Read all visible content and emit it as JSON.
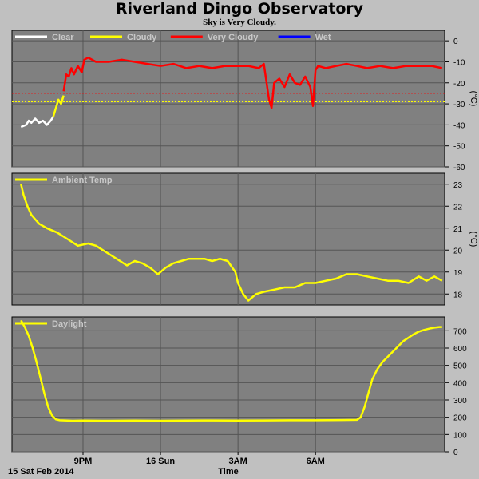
{
  "title": "Riverland Dingo Observatory",
  "subtitle": "Sky is Very Cloudy.",
  "date_label": "15 Sat Feb 2014",
  "xlabel": "Time",
  "x_ticks": [
    "9PM",
    "16 Sun",
    "3AM",
    "6AM"
  ],
  "colors": {
    "background": "#c0c0c0",
    "plot": "#808080",
    "grid": "#555555",
    "clear": "#ffffff",
    "cloudy": "#ffff00",
    "very_cloudy": "#ff0000",
    "wet": "#0000ff"
  },
  "chart_data": [
    {
      "type": "line",
      "name": "sky",
      "ylabel": "(°C)",
      "ylim": [
        -60,
        5
      ],
      "yticks": [
        0,
        -10,
        -20,
        -30,
        -40,
        -50,
        -60
      ],
      "thresholds": [
        {
          "value": -25,
          "color": "#ff0000"
        },
        {
          "value": -29,
          "color": "#ffff00"
        }
      ],
      "legend": [
        {
          "label": "Clear",
          "color": "#ffffff"
        },
        {
          "label": "Cloudy",
          "color": "#ffff00"
        },
        {
          "label": "Very Cloudy",
          "color": "#ff0000"
        },
        {
          "label": "Wet",
          "color": "#0000ff"
        }
      ],
      "series": [
        {
          "name": "Clear",
          "color": "#ffffff",
          "x": [
            18.6,
            18.8,
            18.9,
            19.0,
            19.15,
            19.3,
            19.45,
            19.6,
            19.75,
            19.85
          ],
          "y": [
            -41,
            -40,
            -38,
            -39,
            -37,
            -39,
            -38,
            -40,
            -38,
            -36
          ]
        },
        {
          "name": "Cloudy",
          "color": "#ffff00",
          "x": [
            19.85,
            19.95,
            20.05,
            20.15,
            20.25
          ],
          "y": [
            -36,
            -32,
            -28,
            -30,
            -26
          ]
        },
        {
          "name": "Very Cloudy",
          "color": "#ff0000",
          "x": [
            20.25,
            20.35,
            20.45,
            20.55,
            20.65,
            20.8,
            20.95,
            21.05,
            21.2,
            21.5,
            22.0,
            22.5,
            23.0,
            23.5,
            24.0,
            24.5,
            25.0,
            25.5,
            26.0,
            26.5,
            27.0,
            27.4,
            27.8,
            28.0,
            28.2,
            28.3,
            28.4,
            28.6,
            28.8,
            29.0,
            29.2,
            29.4,
            29.6,
            29.8,
            29.9,
            30.0,
            30.1,
            30.4,
            30.8,
            31.2,
            31.6,
            32.0,
            32.5,
            33.0,
            33.5,
            34.0,
            34.5,
            34.9
          ],
          "y": [
            -24,
            -16,
            -17,
            -13,
            -16,
            -12,
            -15,
            -9,
            -8,
            -10,
            -10,
            -9,
            -10,
            -11,
            -12,
            -11,
            -13,
            -12,
            -13,
            -12,
            -12,
            -12,
            -13,
            -11,
            -28,
            -32,
            -20,
            -18,
            -22,
            -16,
            -20,
            -21,
            -17,
            -22,
            -31,
            -14,
            -12,
            -13,
            -12,
            -11,
            -12,
            -13,
            -12,
            -13,
            -12,
            -12,
            -12,
            -13
          ]
        }
      ]
    },
    {
      "type": "line",
      "name": "ambient",
      "ylabel": "(°C)",
      "ylim": [
        17.5,
        23.5
      ],
      "yticks": [
        23,
        22,
        21,
        20,
        19,
        18
      ],
      "legend": [
        {
          "label": "Ambient Temp",
          "color": "#ffff00"
        }
      ],
      "series": [
        {
          "name": "Ambient Temp",
          "color": "#ffff00",
          "x": [
            18.6,
            18.7,
            18.85,
            19.0,
            19.3,
            19.6,
            20.0,
            20.4,
            20.8,
            21.2,
            21.5,
            21.9,
            22.3,
            22.7,
            23.0,
            23.3,
            23.6,
            23.9,
            24.2,
            24.5,
            24.8,
            25.1,
            25.4,
            25.7,
            26.0,
            26.3,
            26.6,
            26.9,
            27.0,
            27.2,
            27.4,
            27.7,
            28.0,
            28.4,
            28.8,
            29.2,
            29.6,
            30.0,
            30.4,
            30.8,
            31.2,
            31.6,
            32.0,
            32.4,
            32.8,
            33.2,
            33.6,
            34.0,
            34.3,
            34.6,
            34.9
          ],
          "y": [
            23.0,
            22.5,
            22.0,
            21.6,
            21.2,
            21.0,
            20.8,
            20.5,
            20.2,
            20.3,
            20.2,
            19.9,
            19.6,
            19.3,
            19.5,
            19.4,
            19.2,
            18.9,
            19.2,
            19.4,
            19.5,
            19.6,
            19.6,
            19.6,
            19.5,
            19.6,
            19.5,
            19.0,
            18.5,
            18.0,
            17.7,
            18.0,
            18.1,
            18.2,
            18.3,
            18.3,
            18.5,
            18.5,
            18.6,
            18.7,
            18.9,
            18.9,
            18.8,
            18.7,
            18.6,
            18.6,
            18.5,
            18.8,
            18.6,
            18.8,
            18.6
          ]
        }
      ]
    },
    {
      "type": "line",
      "name": "daylight",
      "ylabel": "",
      "ylim": [
        0,
        780
      ],
      "yticks": [
        700,
        600,
        500,
        400,
        300,
        200,
        100,
        0
      ],
      "legend": [
        {
          "label": "Daylight",
          "color": "#ffff00"
        }
      ],
      "series": [
        {
          "name": "Daylight",
          "color": "#ffff00",
          "x": [
            18.6,
            18.75,
            18.9,
            19.05,
            19.2,
            19.35,
            19.5,
            19.65,
            19.8,
            19.95,
            20.1,
            20.3,
            20.6,
            21.0,
            22.0,
            23.0,
            24.0,
            25.0,
            26.0,
            27.0,
            28.0,
            29.0,
            30.0,
            31.0,
            31.6,
            31.75,
            31.9,
            32.05,
            32.2,
            32.4,
            32.6,
            32.8,
            33.0,
            33.2,
            33.4,
            33.6,
            33.8,
            34.0,
            34.2,
            34.4,
            34.6,
            34.8,
            34.9
          ],
          "y": [
            760,
            720,
            670,
            600,
            520,
            430,
            340,
            260,
            210,
            188,
            183,
            182,
            180,
            181,
            180,
            181,
            180,
            181,
            182,
            181,
            182,
            183,
            183,
            184,
            185,
            200,
            260,
            340,
            420,
            480,
            520,
            550,
            580,
            610,
            640,
            660,
            680,
            695,
            705,
            712,
            718,
            722,
            722
          ]
        }
      ]
    }
  ]
}
